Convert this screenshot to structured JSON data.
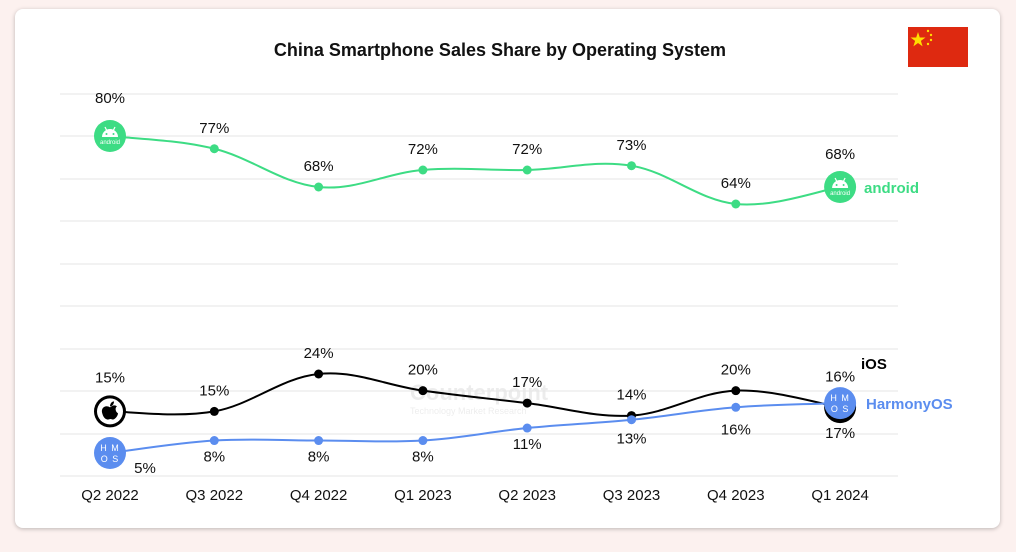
{
  "chart_data": {
    "type": "line",
    "title": "China Smartphone Sales Share by Operating System",
    "xlabel": "",
    "ylabel": "",
    "grid": true,
    "categories": [
      "Q2 2022",
      "Q3 2022",
      "Q4 2022",
      "Q1 2023",
      "Q2 2023",
      "Q3 2023",
      "Q4 2023",
      "Q1 2024"
    ],
    "series": [
      {
        "name": "android",
        "color": "#3ddc84",
        "icon": "android-icon",
        "values": [
          80,
          77,
          68,
          72,
          72,
          73,
          64,
          68
        ],
        "labels": [
          "80%",
          "77%",
          "68%",
          "72%",
          "72%",
          "73%",
          "64%",
          "68%"
        ]
      },
      {
        "name": "iOS",
        "color": "#000000",
        "icon": "apple-icon",
        "values": [
          15,
          15,
          24,
          20,
          17,
          14,
          20,
          16
        ],
        "labels": [
          "15%",
          "15%",
          "24%",
          "20%",
          "17%",
          "14%",
          "20%",
          "16%"
        ]
      },
      {
        "name": "HarmonyOS",
        "color": "#5b8def",
        "icon": "hmos-icon",
        "values": [
          5,
          8,
          8,
          8,
          11,
          13,
          16,
          17
        ],
        "labels": [
          "5%",
          "8%",
          "8%",
          "8%",
          "11%",
          "13%",
          "16%",
          "17%"
        ]
      }
    ],
    "legend": "right-end-of-lines"
  },
  "header": {
    "flag": "china-flag-icon"
  },
  "watermark": {
    "brand": "Counterpoint",
    "tagline": "Technology Market Research"
  },
  "icons": {
    "android_text": "android",
    "hmos_top": "H M",
    "hmos_bottom": "O S"
  }
}
